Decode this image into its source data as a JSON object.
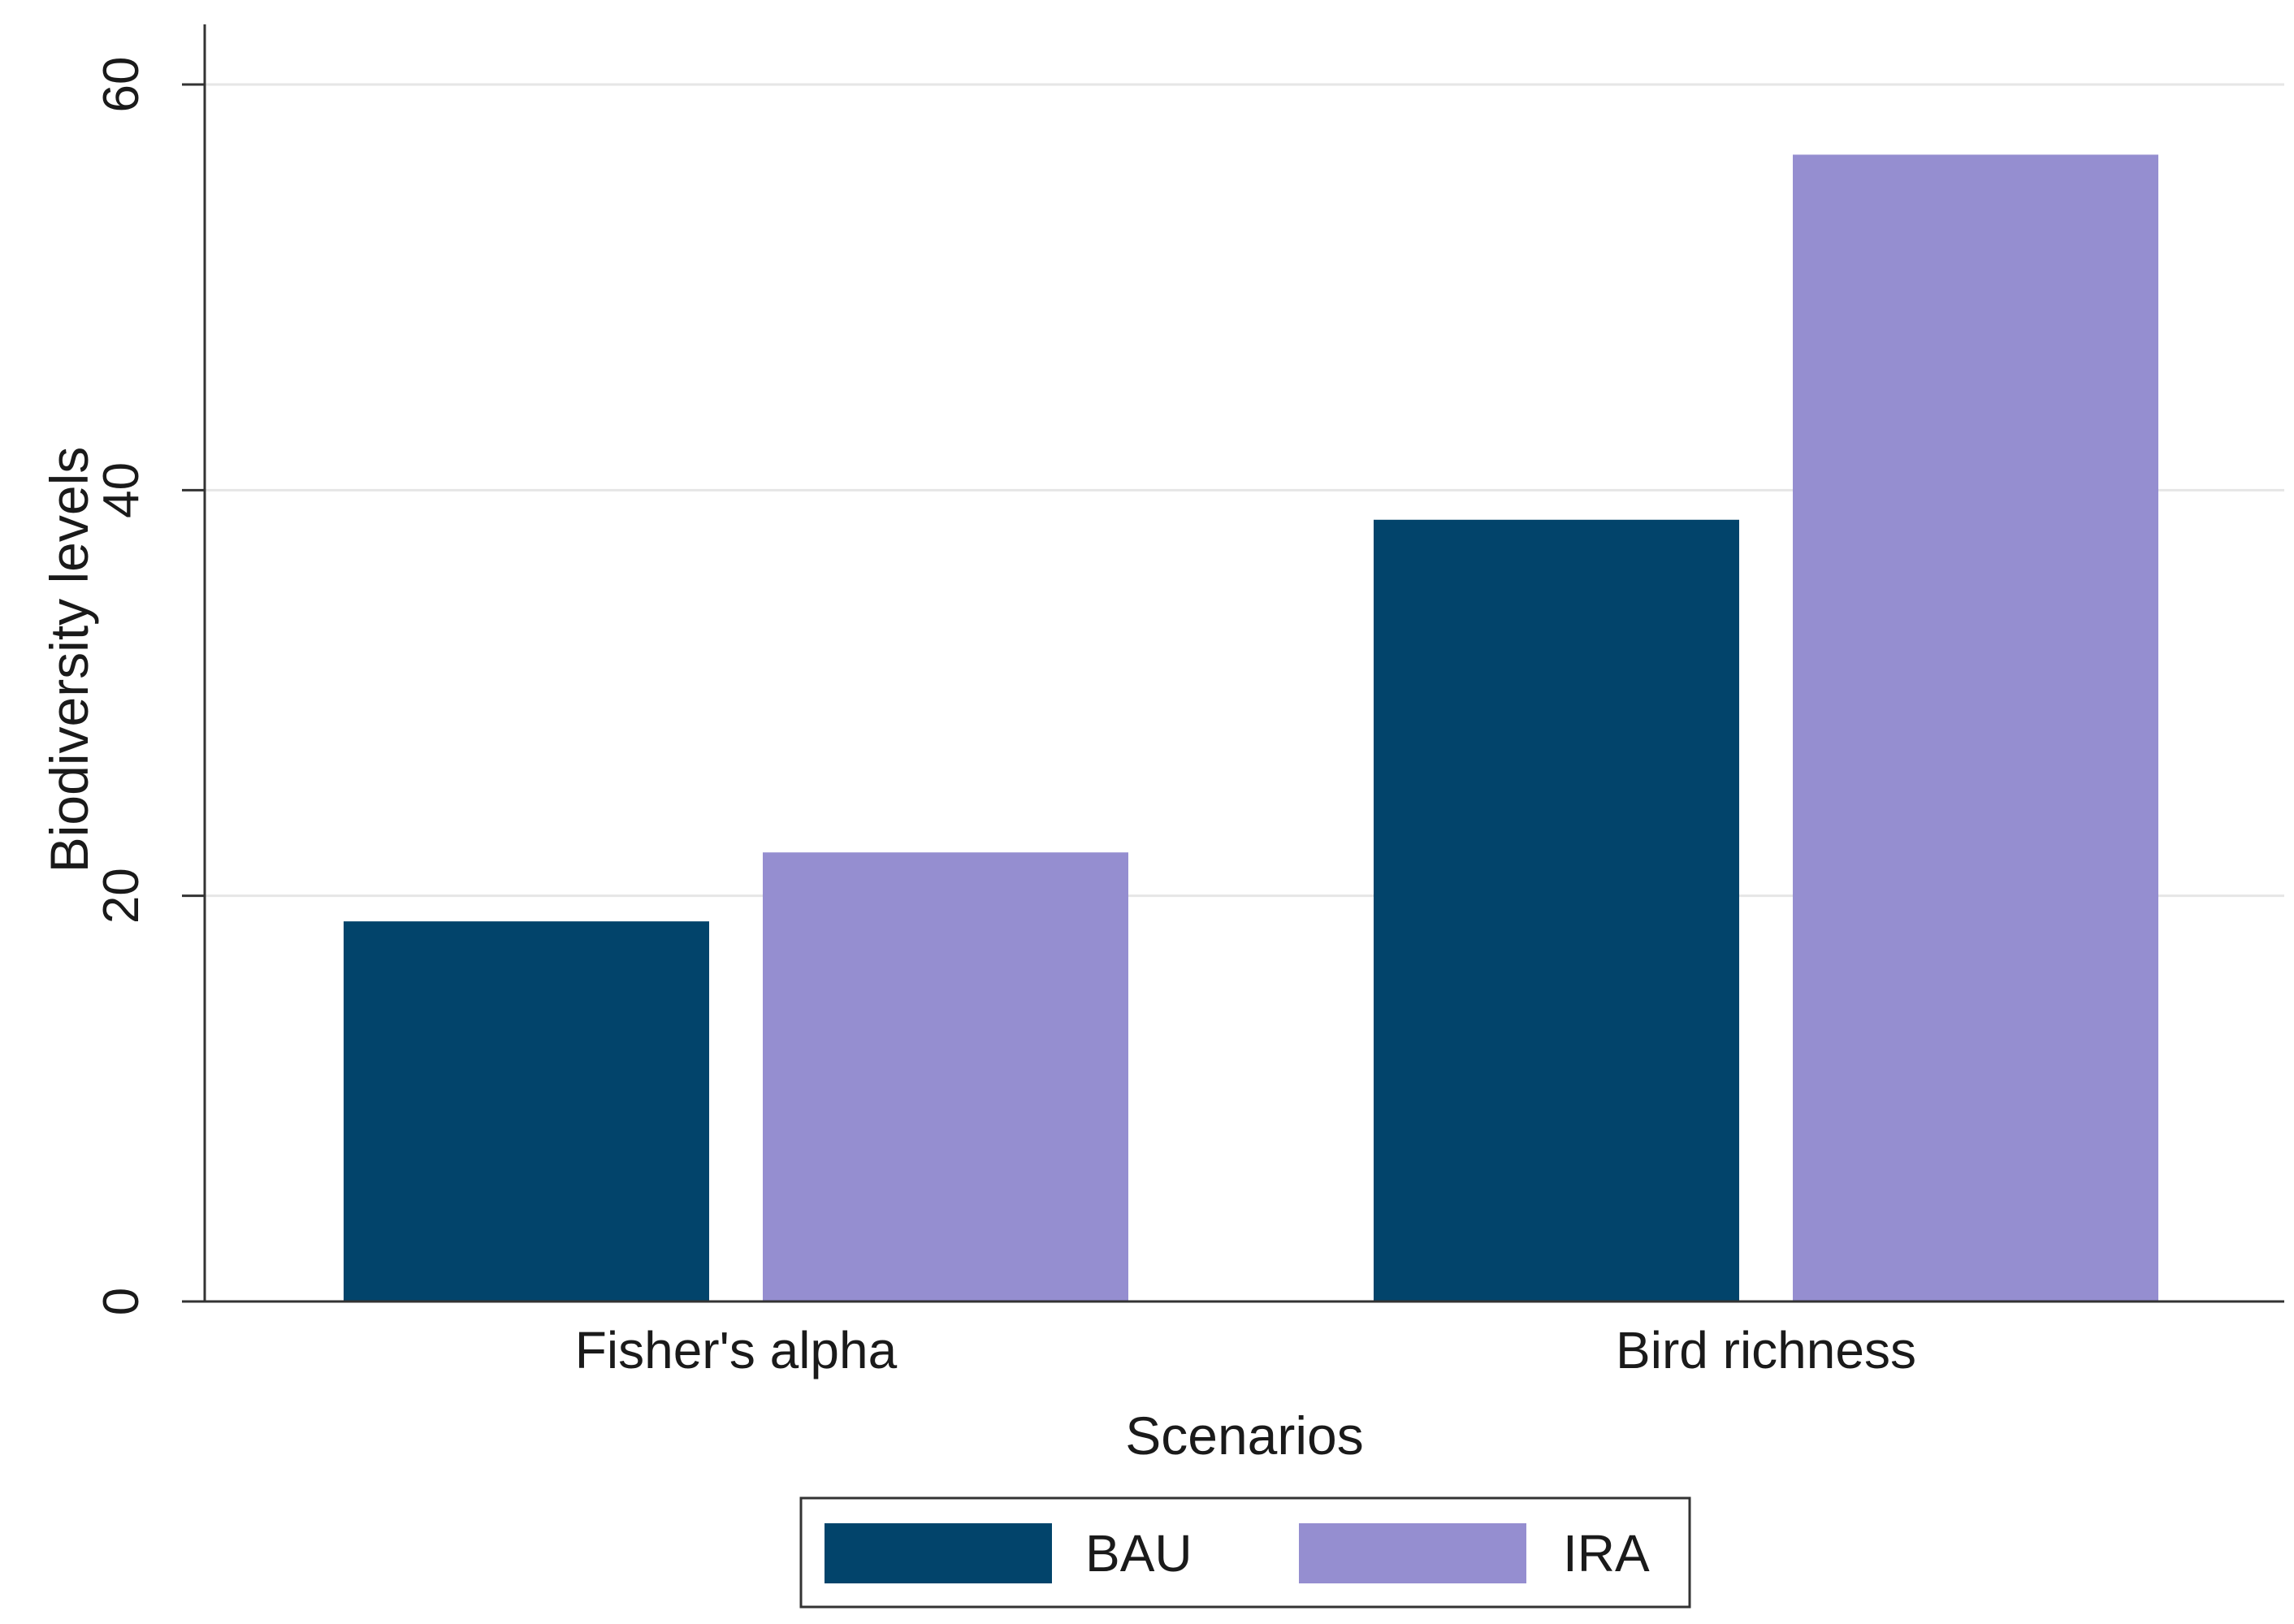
{
  "chart_data": {
    "type": "bar",
    "title": "",
    "xlabel": "Scenarios",
    "ylabel": "Biodiversity levels",
    "categories": [
      "Fisher's alpha",
      "Bird richness"
    ],
    "series": [
      {
        "name": "BAU",
        "color": "#02446b",
        "values": [
          18.7,
          38.5
        ]
      },
      {
        "name": "IRA",
        "color": "#958ed0",
        "values": [
          22.1,
          56.5
        ]
      }
    ],
    "ylim": [
      0,
      60
    ],
    "yticks": [
      0,
      20,
      40,
      60
    ],
    "ytick_labels": [
      "0",
      "20",
      "40",
      "60"
    ],
    "grid": true,
    "legend_position": "bottom-center"
  }
}
